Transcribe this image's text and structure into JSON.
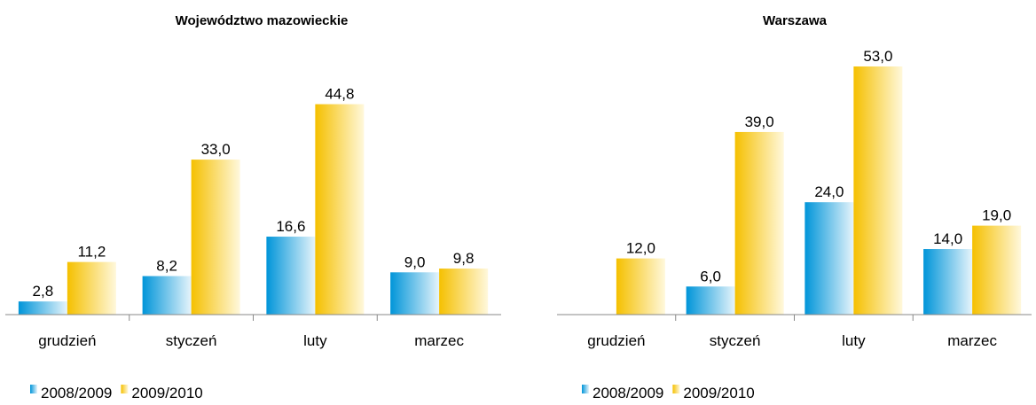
{
  "chart_data": [
    {
      "type": "bar",
      "title": "Województwo mazowieckie",
      "categories": [
        "grudzień",
        "styczeń",
        "luty",
        "marzec"
      ],
      "series": [
        {
          "name": "2008/2009",
          "color": "#0095d9",
          "values": [
            2.8,
            8.2,
            16.6,
            9.0
          ],
          "value_labels": [
            "2,8",
            "8,2",
            "16,6",
            "9,0"
          ]
        },
        {
          "name": "2009/2010",
          "color": "#f5c000",
          "values": [
            11.2,
            33.0,
            44.8,
            9.8
          ],
          "value_labels": [
            "11,2",
            "33,0",
            "44,8",
            "9,8"
          ]
        }
      ],
      "ylim": [
        0,
        50
      ]
    },
    {
      "type": "bar",
      "title": "Warszawa",
      "categories": [
        "grudzień",
        "styczeń",
        "luty",
        "marzec"
      ],
      "series": [
        {
          "name": "2008/2009",
          "color": "#0095d9",
          "values": [
            null,
            6.0,
            24.0,
            14.0
          ],
          "value_labels": [
            null,
            "6,0",
            "24,0",
            "14,0"
          ]
        },
        {
          "name": "2009/2010",
          "color": "#f5c000",
          "values": [
            12.0,
            39.0,
            53.0,
            19.0
          ],
          "value_labels": [
            "12,0",
            "39,0",
            "53,0",
            "19,0"
          ]
        }
      ],
      "ylim": [
        0,
        60
      ]
    }
  ]
}
